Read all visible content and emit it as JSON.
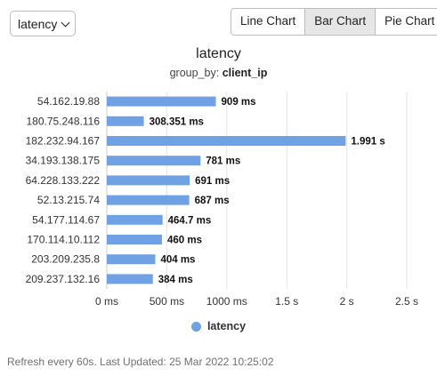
{
  "selector": {
    "value": "latency"
  },
  "tabs": [
    {
      "label": "Line Chart",
      "active": false
    },
    {
      "label": "Bar Chart",
      "active": true
    },
    {
      "label": "Pie Chart",
      "active": false
    }
  ],
  "bar_color": "#6fa1e4",
  "chart_data": {
    "type": "bar",
    "orientation": "horizontal",
    "title": "latency",
    "subtitle_prefix": "group_by:",
    "subtitle_value": "client_ip",
    "categories": [
      "54.162.19.88",
      "180.75.248.116",
      "182.232.94.167",
      "34.193.138.175",
      "64.228.133.222",
      "52.13.215.74",
      "54.177.114.67",
      "170.114.10.112",
      "203.209.235.8",
      "209.237.132.16"
    ],
    "values": [
      909,
      308.351,
      1991,
      781,
      691,
      687,
      464.7,
      460,
      404,
      384
    ],
    "data_labels": [
      "909 ms",
      "308.351 ms",
      "1.991 s",
      "781 ms",
      "691 ms",
      "687 ms",
      "464.7 ms",
      "460 ms",
      "404 ms",
      "384 ms"
    ],
    "unit": "ms",
    "xlim": [
      0,
      2500
    ],
    "xticks": [
      0,
      500,
      1000,
      1500,
      2000,
      2500
    ],
    "xtick_labels": [
      "0 ms",
      "500 ms",
      "1000 ms",
      "1.5 s",
      "2 s",
      "2.5 s"
    ],
    "series": [
      {
        "name": "latency",
        "values": [
          909,
          308.351,
          1991,
          781,
          691,
          687,
          464.7,
          460,
          404,
          384
        ]
      }
    ],
    "legend": "bottom-center",
    "grid": true
  },
  "footer": {
    "text": "Refresh every 60s. Last Updated: 25 Mar 2022 10:25:02"
  }
}
